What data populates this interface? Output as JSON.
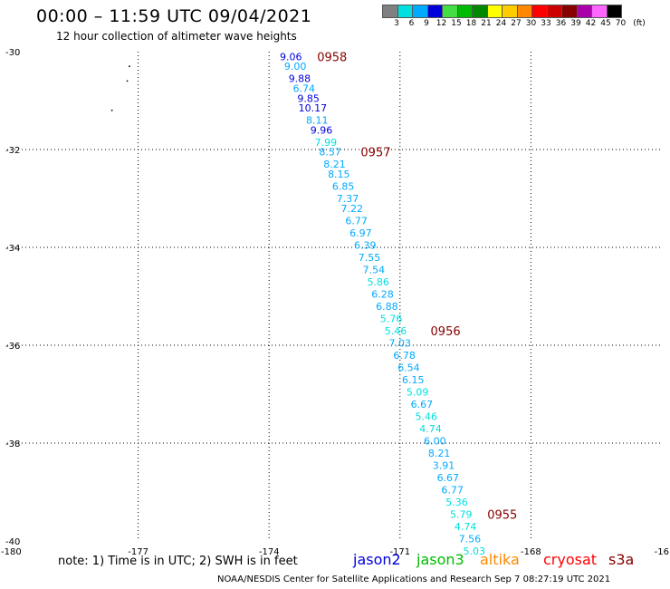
{
  "header": {
    "title": "00:00 – 11:59 UTC 09/04/2021",
    "subtitle": "12 hour collection of altimeter wave heights"
  },
  "legend": {
    "colors": [
      "#808080",
      "#00e0e0",
      "#00aaff",
      "#0000dd",
      "#44dd44",
      "#00bb00",
      "#008800",
      "#ffff00",
      "#ffcc00",
      "#ff8800",
      "#ff0000",
      "#cc0000",
      "#880000",
      "#aa00aa",
      "#ff66ff",
      "#000000"
    ],
    "labels": [
      "3",
      "6",
      "9",
      "12",
      "15",
      "18",
      "21",
      "24",
      "27",
      "30",
      "33",
      "36",
      "39",
      "42",
      "45",
      "70"
    ],
    "unit": "(ft)"
  },
  "chart_data": {
    "type": "scatter",
    "title": "00:00 – 11:59 UTC 09/04/2021",
    "subtitle": "12 hour collection of altimeter wave heights",
    "xlim": [
      -180,
      -165
    ],
    "ylim": [
      -40,
      -30
    ],
    "x_ticks": [
      "-180",
      "-177",
      "-174",
      "-171",
      "-168",
      "-16"
    ],
    "y_ticks": [
      "-30",
      "-32",
      "-34",
      "-36",
      "-38",
      "-40"
    ],
    "grid": true,
    "series": [
      {
        "name": "jason2",
        "points": [
          {
            "lon": -173.5,
            "lat": -30.1,
            "swh": "9.06",
            "color": "#0000dd"
          },
          {
            "lon": -173.4,
            "lat": -30.3,
            "swh": "9.00",
            "color": "#00aaff"
          },
          {
            "lon": -173.3,
            "lat": -30.55,
            "swh": "9.88",
            "color": "#0000dd"
          },
          {
            "lon": -173.2,
            "lat": -30.75,
            "swh": "6.74",
            "color": "#00aaff"
          },
          {
            "lon": -173.1,
            "lat": -30.95,
            "swh": "9.85",
            "color": "#0000dd"
          },
          {
            "lon": -173.0,
            "lat": -31.15,
            "swh": "10.17",
            "color": "#0000dd"
          },
          {
            "lon": -172.9,
            "lat": -31.4,
            "swh": "8.11",
            "color": "#00aaff"
          },
          {
            "lon": -172.8,
            "lat": -31.6,
            "swh": "9.96",
            "color": "#0000dd"
          },
          {
            "lon": -172.7,
            "lat": -31.85,
            "swh": "7.99",
            "color": "#00e0e0"
          },
          {
            "lon": -172.6,
            "lat": -32.05,
            "swh": "8.57",
            "color": "#00aaff"
          },
          {
            "lon": -172.5,
            "lat": -32.3,
            "swh": "8.21",
            "color": "#00aaff"
          },
          {
            "lon": -172.4,
            "lat": -32.5,
            "swh": "8.15",
            "color": "#00aaff"
          },
          {
            "lon": -172.3,
            "lat": -32.75,
            "swh": "6.85",
            "color": "#00aaff"
          },
          {
            "lon": -172.2,
            "lat": -33.0,
            "swh": "7.37",
            "color": "#00aaff"
          },
          {
            "lon": -172.1,
            "lat": -33.2,
            "swh": "7.22",
            "color": "#00aaff"
          },
          {
            "lon": -172.0,
            "lat": -33.45,
            "swh": "6.77",
            "color": "#00aaff"
          },
          {
            "lon": -171.9,
            "lat": -33.7,
            "swh": "6.97",
            "color": "#00aaff"
          },
          {
            "lon": -171.8,
            "lat": -33.95,
            "swh": "6.39",
            "color": "#00aaff"
          },
          {
            "lon": -171.7,
            "lat": -34.2,
            "swh": "7.55",
            "color": "#00aaff"
          },
          {
            "lon": -171.6,
            "lat": -34.45,
            "swh": "7.54",
            "color": "#00aaff"
          },
          {
            "lon": -171.5,
            "lat": -34.7,
            "swh": "5.86",
            "color": "#00e0e0"
          },
          {
            "lon": -171.4,
            "lat": -34.95,
            "swh": "6.28",
            "color": "#00aaff"
          },
          {
            "lon": -171.3,
            "lat": -35.2,
            "swh": "6.88",
            "color": "#00aaff"
          },
          {
            "lon": -171.2,
            "lat": -35.45,
            "swh": "5.76",
            "color": "#00e0e0"
          },
          {
            "lon": -171.1,
            "lat": -35.7,
            "swh": "5.46",
            "color": "#00e0e0"
          },
          {
            "lon": -171.0,
            "lat": -35.95,
            "swh": "7.03",
            "color": "#00aaff"
          },
          {
            "lon": -170.9,
            "lat": -36.2,
            "swh": "6.78",
            "color": "#00aaff"
          },
          {
            "lon": -170.8,
            "lat": -36.45,
            "swh": "6.54",
            "color": "#00aaff"
          },
          {
            "lon": -170.7,
            "lat": -36.7,
            "swh": "6.15",
            "color": "#00aaff"
          },
          {
            "lon": -170.6,
            "lat": -36.95,
            "swh": "5.09",
            "color": "#00e0e0"
          },
          {
            "lon": -170.5,
            "lat": -37.2,
            "swh": "6.67",
            "color": "#00aaff"
          },
          {
            "lon": -170.4,
            "lat": -37.45,
            "swh": "5.46",
            "color": "#00e0e0"
          },
          {
            "lon": -170.3,
            "lat": -37.7,
            "swh": "4.74",
            "color": "#00e0e0"
          },
          {
            "lon": -170.2,
            "lat": -37.95,
            "swh": "6.00",
            "color": "#00aaff"
          },
          {
            "lon": -170.1,
            "lat": -38.2,
            "swh": "8.21",
            "color": "#00aaff"
          },
          {
            "lon": -170.0,
            "lat": -38.45,
            "swh": "3.91",
            "color": "#00aaff"
          },
          {
            "lon": -169.9,
            "lat": -38.7,
            "swh": "6.67",
            "color": "#00aaff"
          },
          {
            "lon": -169.8,
            "lat": -38.95,
            "swh": "6.77",
            "color": "#00aaff"
          },
          {
            "lon": -169.7,
            "lat": -39.2,
            "swh": "5.36",
            "color": "#00e0e0"
          },
          {
            "lon": -169.6,
            "lat": -39.45,
            "swh": "5.79",
            "color": "#00e0e0"
          },
          {
            "lon": -169.5,
            "lat": -39.7,
            "swh": "4.74",
            "color": "#00e0e0"
          },
          {
            "lon": -169.4,
            "lat": -39.95,
            "swh": "7.56",
            "color": "#00aaff"
          },
          {
            "lon": -169.3,
            "lat": -40.2,
            "swh": "5.03",
            "color": "#00e0e0"
          }
        ]
      }
    ],
    "annotations": [
      {
        "text": "0958",
        "lon": -172.9,
        "lat": -30.1
      },
      {
        "text": "0957",
        "lon": -171.9,
        "lat": -32.05
      },
      {
        "text": "0956",
        "lon": -170.3,
        "lat": -35.7
      },
      {
        "text": "0955",
        "lon": -169.0,
        "lat": -39.45
      }
    ],
    "extra_marks": [
      {
        "lon": -177.2,
        "lat": -30.3
      },
      {
        "lon": -177.25,
        "lat": -30.6
      },
      {
        "lon": -177.6,
        "lat": -31.2
      }
    ]
  },
  "note": "note: 1) Time is in UTC; 2) SWH is in feet",
  "satellites": [
    {
      "name": "jason2",
      "color": "#0000dd"
    },
    {
      "name": "jason3",
      "color": "#00bb00"
    },
    {
      "name": "altika",
      "color": "#ff8800"
    },
    {
      "name": "cryosat",
      "color": "#ff0000"
    },
    {
      "name": "s3a",
      "color": "#880000"
    }
  ],
  "footer": "NOAA/NESDIS Center for Satellite Applications and Research   Sep  7 08:27:19 UTC 2021"
}
